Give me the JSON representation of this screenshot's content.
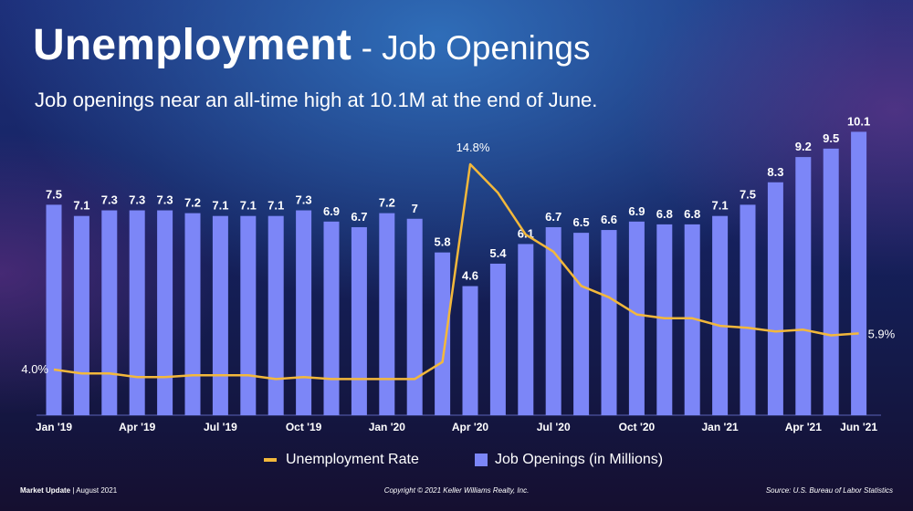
{
  "title": {
    "main": "Unemployment",
    "sub": "- Job Openings"
  },
  "subtitle": "Job openings near an all-time high at 10.1M at the end of June.",
  "footer": {
    "left_bold": "Market Update",
    "left_rest": "| August 2021",
    "center": "Copyright © 2021 Keller Williams Realty, Inc.",
    "right": "Source: U.S. Bureau of Labor Statistics"
  },
  "chart_data": {
    "type": "bar",
    "categories": [
      "Jan '19",
      "Feb '19",
      "Mar '19",
      "Apr '19",
      "May '19",
      "Jun '19",
      "Jul '19",
      "Aug '19",
      "Sep '19",
      "Oct '19",
      "Nov '19",
      "Dec '19",
      "Jan '20",
      "Feb '20",
      "Mar '20",
      "Apr '20",
      "May '20",
      "Jun '20",
      "Jul '20",
      "Aug '20",
      "Sep '20",
      "Oct '20",
      "Nov '20",
      "Dec '20",
      "Jan '21",
      "Feb '21",
      "Mar '21",
      "Apr '21",
      "May '21",
      "Jun '21"
    ],
    "x_tick_labels": [
      "Jan '19",
      "",
      "",
      "Apr '19",
      "",
      "",
      "Jul '19",
      "",
      "",
      "Oct '19",
      "",
      "",
      "Jan '20",
      "",
      "",
      "Apr '20",
      "",
      "",
      "Jul '20",
      "",
      "",
      "Oct '20",
      "",
      "",
      "Jan '21",
      "",
      "",
      "Apr '21",
      "",
      "Jun '21"
    ],
    "series": [
      {
        "name": "Job Openings (in Millions)",
        "type": "bar",
        "color": "#7c86f7",
        "values": [
          7.5,
          7.1,
          7.3,
          7.3,
          7.3,
          7.2,
          7.1,
          7.1,
          7.1,
          7.3,
          6.9,
          6.7,
          7.2,
          7.0,
          5.8,
          4.6,
          5.4,
          6.1,
          6.7,
          6.5,
          6.6,
          6.9,
          6.8,
          6.8,
          7.1,
          7.5,
          8.3,
          9.2,
          9.5,
          10.1
        ],
        "labels": [
          "7.5",
          "7.1",
          "7.3",
          "7.3",
          "7.3",
          "7.2",
          "7.1",
          "7.1",
          "7.1",
          "7.3",
          "6.9",
          "6.7",
          "7.2",
          "7",
          "5.8",
          "4.6",
          "5.4",
          "6.1",
          "6.7",
          "6.5",
          "6.6",
          "6.9",
          "6.8",
          "6.8",
          "7.1",
          "7.5",
          "8.3",
          "9.2",
          "9.5",
          "10.1"
        ]
      },
      {
        "name": "Unemployment Rate",
        "type": "line",
        "color": "#f3b83b",
        "values": [
          4.0,
          3.8,
          3.8,
          3.6,
          3.6,
          3.7,
          3.7,
          3.7,
          3.5,
          3.6,
          3.5,
          3.5,
          3.5,
          3.5,
          4.4,
          14.8,
          13.3,
          11.1,
          10.2,
          8.4,
          7.8,
          6.9,
          6.7,
          6.7,
          6.3,
          6.2,
          6.0,
          6.1,
          5.8,
          5.9
        ],
        "labels": [
          "4.0%",
          "",
          "",
          "",
          "",
          "",
          "",
          "",
          "",
          "",
          "",
          "",
          "",
          "",
          "",
          "14.8%",
          "",
          "",
          "",
          "",
          "",
          "",
          "",
          "",
          "",
          "",
          "",
          "",
          "",
          "5.9%"
        ]
      }
    ],
    "ylim_bars": [
      0,
      10.5
    ],
    "ylim_line": [
      0,
      15
    ],
    "grid": false,
    "legend": "bottom-center"
  }
}
